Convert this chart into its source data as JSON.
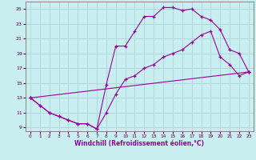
{
  "xlabel": "Windchill (Refroidissement éolien,°C)",
  "bg_color": "#c8eef0",
  "grid_color": "#b0d8dc",
  "line_color": "#990099",
  "xmin": -0.5,
  "xmax": 23.5,
  "ymin": 8.5,
  "ymax": 26,
  "yticks": [
    9,
    11,
    13,
    15,
    17,
    19,
    21,
    23,
    25
  ],
  "xticks": [
    0,
    1,
    2,
    3,
    4,
    5,
    6,
    7,
    8,
    9,
    10,
    11,
    12,
    13,
    14,
    15,
    16,
    17,
    18,
    19,
    20,
    21,
    22,
    23
  ],
  "series1_x": [
    0,
    1,
    2,
    3,
    4,
    5,
    6,
    7,
    8,
    9,
    10,
    11,
    12,
    13,
    14,
    15,
    16,
    17,
    18,
    19,
    20,
    21,
    22,
    23
  ],
  "series1_y": [
    13,
    12,
    11,
    10.5,
    10,
    9.5,
    9.5,
    8.8,
    14.8,
    20,
    20,
    22,
    24,
    24,
    25.2,
    25.2,
    24.8,
    25,
    24,
    23.5,
    22.2,
    19.5,
    19,
    16.5
  ],
  "series2_x": [
    0,
    1,
    2,
    3,
    4,
    5,
    6,
    7,
    8,
    9,
    10,
    11,
    12,
    13,
    14,
    15,
    16,
    17,
    18,
    19,
    20,
    21,
    22,
    23
  ],
  "series2_y": [
    13,
    12,
    11,
    10.5,
    10,
    9.5,
    9.5,
    8.8,
    11,
    13.5,
    15.5,
    16,
    17,
    17.5,
    18.5,
    19,
    19.5,
    20.5,
    21.5,
    22,
    18.5,
    17.5,
    16,
    16.5
  ],
  "series3_x": [
    0,
    23
  ],
  "series3_y": [
    13,
    16.5
  ]
}
